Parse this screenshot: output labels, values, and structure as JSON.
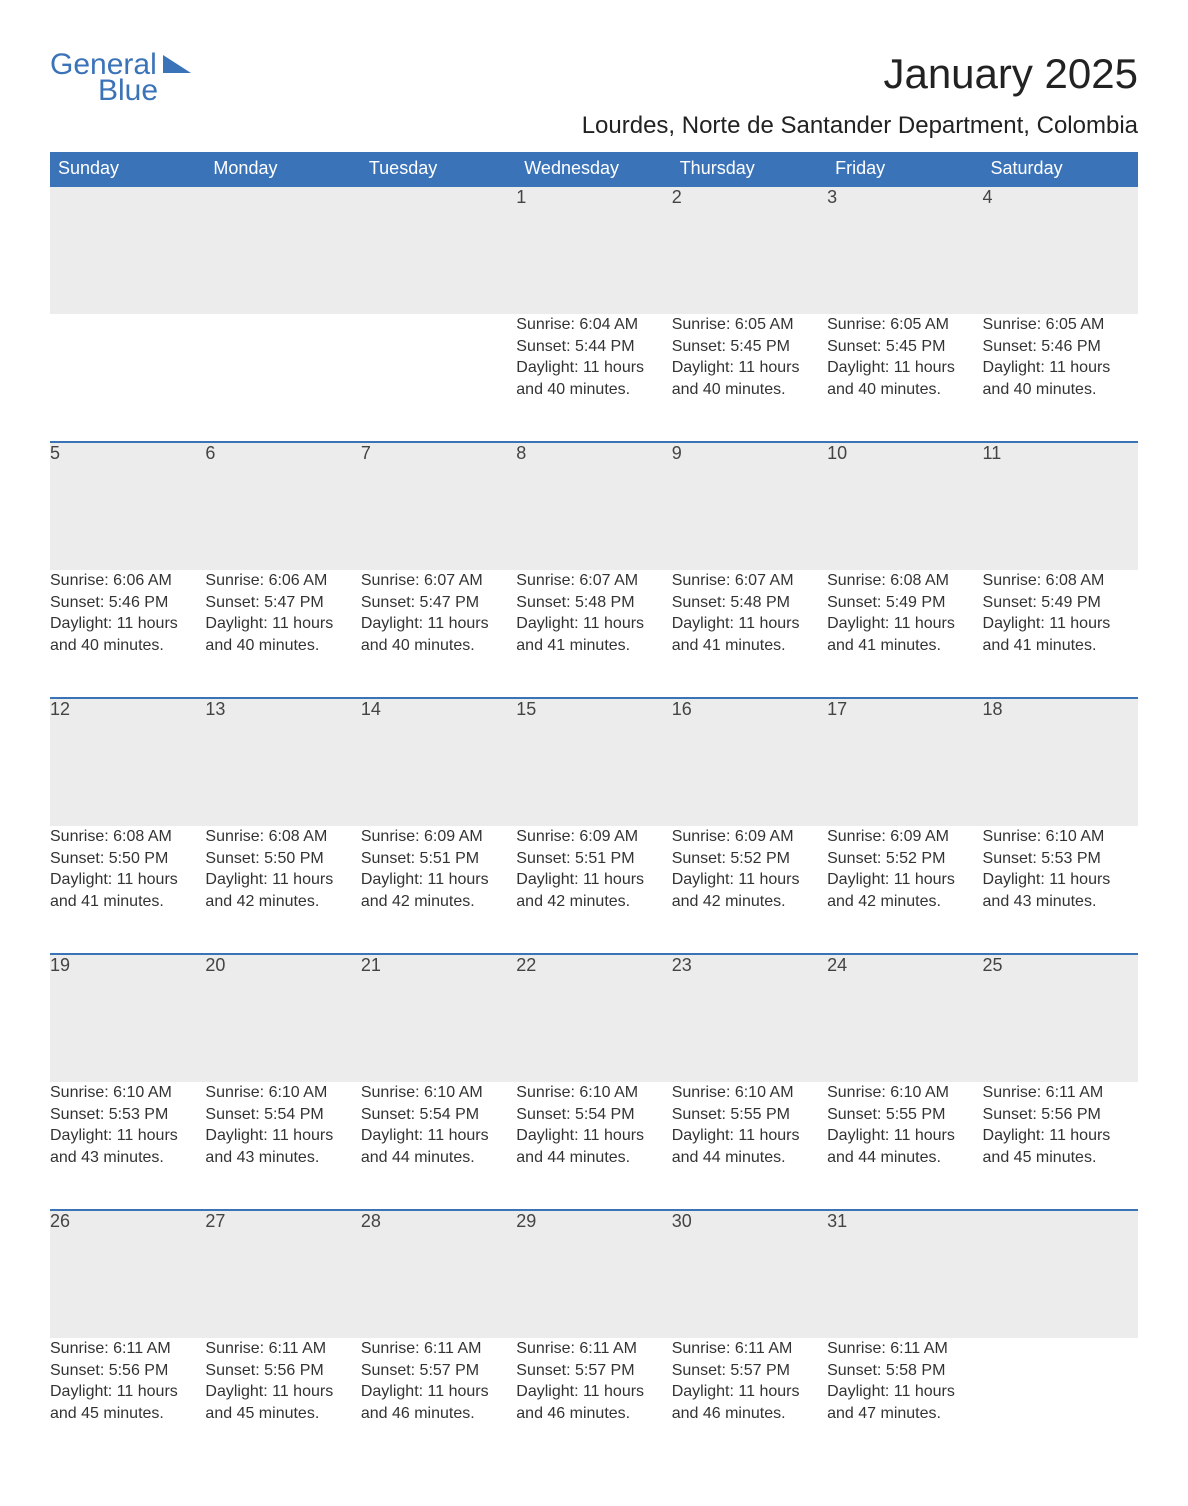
{
  "brand": {
    "part1": "General",
    "part2": "Blue"
  },
  "title": "January 2025",
  "subtitle": "Lourdes, Norte de Santander Department, Colombia",
  "colors": {
    "header_bg": "#3b73b9",
    "header_text": "#ffffff",
    "daynum_bg": "#ececec",
    "daynum_border": "#3b73b9",
    "body_text": "#333333",
    "page_bg": "#ffffff"
  },
  "fontsizes": {
    "title": 42,
    "subtitle": 24,
    "weekday": 18,
    "daynum": 18,
    "body": 16
  },
  "weekdays": [
    "Sunday",
    "Monday",
    "Tuesday",
    "Wednesday",
    "Thursday",
    "Friday",
    "Saturday"
  ],
  "weeks": [
    [
      null,
      null,
      null,
      {
        "n": "1",
        "sr": "6:04 AM",
        "ss": "5:44 PM",
        "dl": "11 hours and 40 minutes."
      },
      {
        "n": "2",
        "sr": "6:05 AM",
        "ss": "5:45 PM",
        "dl": "11 hours and 40 minutes."
      },
      {
        "n": "3",
        "sr": "6:05 AM",
        "ss": "5:45 PM",
        "dl": "11 hours and 40 minutes."
      },
      {
        "n": "4",
        "sr": "6:05 AM",
        "ss": "5:46 PM",
        "dl": "11 hours and 40 minutes."
      }
    ],
    [
      {
        "n": "5",
        "sr": "6:06 AM",
        "ss": "5:46 PM",
        "dl": "11 hours and 40 minutes."
      },
      {
        "n": "6",
        "sr": "6:06 AM",
        "ss": "5:47 PM",
        "dl": "11 hours and 40 minutes."
      },
      {
        "n": "7",
        "sr": "6:07 AM",
        "ss": "5:47 PM",
        "dl": "11 hours and 40 minutes."
      },
      {
        "n": "8",
        "sr": "6:07 AM",
        "ss": "5:48 PM",
        "dl": "11 hours and 41 minutes."
      },
      {
        "n": "9",
        "sr": "6:07 AM",
        "ss": "5:48 PM",
        "dl": "11 hours and 41 minutes."
      },
      {
        "n": "10",
        "sr": "6:08 AM",
        "ss": "5:49 PM",
        "dl": "11 hours and 41 minutes."
      },
      {
        "n": "11",
        "sr": "6:08 AM",
        "ss": "5:49 PM",
        "dl": "11 hours and 41 minutes."
      }
    ],
    [
      {
        "n": "12",
        "sr": "6:08 AM",
        "ss": "5:50 PM",
        "dl": "11 hours and 41 minutes."
      },
      {
        "n": "13",
        "sr": "6:08 AM",
        "ss": "5:50 PM",
        "dl": "11 hours and 42 minutes."
      },
      {
        "n": "14",
        "sr": "6:09 AM",
        "ss": "5:51 PM",
        "dl": "11 hours and 42 minutes."
      },
      {
        "n": "15",
        "sr": "6:09 AM",
        "ss": "5:51 PM",
        "dl": "11 hours and 42 minutes."
      },
      {
        "n": "16",
        "sr": "6:09 AM",
        "ss": "5:52 PM",
        "dl": "11 hours and 42 minutes."
      },
      {
        "n": "17",
        "sr": "6:09 AM",
        "ss": "5:52 PM",
        "dl": "11 hours and 42 minutes."
      },
      {
        "n": "18",
        "sr": "6:10 AM",
        "ss": "5:53 PM",
        "dl": "11 hours and 43 minutes."
      }
    ],
    [
      {
        "n": "19",
        "sr": "6:10 AM",
        "ss": "5:53 PM",
        "dl": "11 hours and 43 minutes."
      },
      {
        "n": "20",
        "sr": "6:10 AM",
        "ss": "5:54 PM",
        "dl": "11 hours and 43 minutes."
      },
      {
        "n": "21",
        "sr": "6:10 AM",
        "ss": "5:54 PM",
        "dl": "11 hours and 44 minutes."
      },
      {
        "n": "22",
        "sr": "6:10 AM",
        "ss": "5:54 PM",
        "dl": "11 hours and 44 minutes."
      },
      {
        "n": "23",
        "sr": "6:10 AM",
        "ss": "5:55 PM",
        "dl": "11 hours and 44 minutes."
      },
      {
        "n": "24",
        "sr": "6:10 AM",
        "ss": "5:55 PM",
        "dl": "11 hours and 44 minutes."
      },
      {
        "n": "25",
        "sr": "6:11 AM",
        "ss": "5:56 PM",
        "dl": "11 hours and 45 minutes."
      }
    ],
    [
      {
        "n": "26",
        "sr": "6:11 AM",
        "ss": "5:56 PM",
        "dl": "11 hours and 45 minutes."
      },
      {
        "n": "27",
        "sr": "6:11 AM",
        "ss": "5:56 PM",
        "dl": "11 hours and 45 minutes."
      },
      {
        "n": "28",
        "sr": "6:11 AM",
        "ss": "5:57 PM",
        "dl": "11 hours and 46 minutes."
      },
      {
        "n": "29",
        "sr": "6:11 AM",
        "ss": "5:57 PM",
        "dl": "11 hours and 46 minutes."
      },
      {
        "n": "30",
        "sr": "6:11 AM",
        "ss": "5:57 PM",
        "dl": "11 hours and 46 minutes."
      },
      {
        "n": "31",
        "sr": "6:11 AM",
        "ss": "5:58 PM",
        "dl": "11 hours and 47 minutes."
      },
      null
    ]
  ],
  "labels": {
    "sunrise": "Sunrise: ",
    "sunset": "Sunset: ",
    "daylight": "Daylight: "
  }
}
